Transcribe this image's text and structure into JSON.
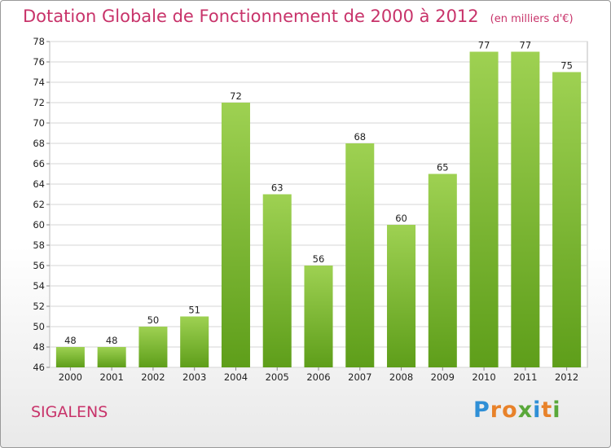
{
  "header": {
    "title": "Dotation Globale de Fonctionnement de 2000 à 2012",
    "subtitle": "(en milliers d'€)"
  },
  "footer": {
    "commune": "SIGALENS",
    "logo_text": "Proxiti",
    "logo_colors": [
      "#2f8fd6",
      "#e8822a",
      "#e8822a",
      "#59a83a",
      "#2f8fd6",
      "#e8822a",
      "#59a83a"
    ]
  },
  "chart_data": {
    "type": "bar",
    "title": "Dotation Globale de Fonctionnement de 2000 à 2012",
    "subtitle": "(en milliers d'€)",
    "categories": [
      "2000",
      "2001",
      "2002",
      "2003",
      "2004",
      "2005",
      "2006",
      "2007",
      "2008",
      "2009",
      "2010",
      "2011",
      "2012"
    ],
    "values": [
      48,
      48,
      50,
      51,
      72,
      63,
      56,
      68,
      60,
      65,
      77,
      77,
      75
    ],
    "ylim": [
      46,
      78
    ],
    "yticks": [
      46,
      48,
      50,
      52,
      54,
      56,
      58,
      60,
      62,
      64,
      66,
      68,
      70,
      72,
      74,
      76,
      78
    ],
    "grid": true,
    "bar_color": "#8cc63f",
    "bar_color_dark": "#5e9e1a"
  }
}
